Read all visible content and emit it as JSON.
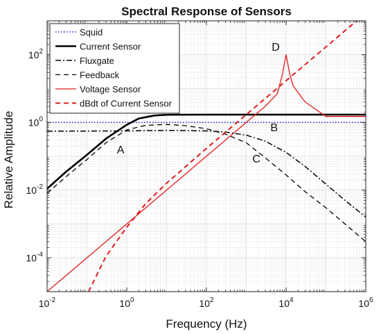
{
  "chart_data": {
    "type": "line",
    "title": "Spectral Response of Sensors",
    "xlabel": "Frequency (Hz)",
    "ylabel": "Relative Amplitude",
    "xscale": "log",
    "yscale": "log",
    "xlim": [
      0.01,
      1000000
    ],
    "ylim": [
      1e-05,
      1000
    ],
    "grid": true,
    "legend_position": "top-left",
    "x_ticks": [
      {
        "base": "10",
        "exp": "-2",
        "value": 0.01
      },
      {
        "base": "10",
        "exp": "0",
        "value": 1
      },
      {
        "base": "10",
        "exp": "2",
        "value": 100
      },
      {
        "base": "10",
        "exp": "4",
        "value": 10000
      },
      {
        "base": "10",
        "exp": "6",
        "value": 1000000
      }
    ],
    "y_ticks": [
      {
        "base": "10",
        "exp": "-4",
        "value": 0.0001
      },
      {
        "base": "10",
        "exp": "-2",
        "value": 0.01
      },
      {
        "base": "10",
        "exp": "0",
        "value": 1
      },
      {
        "base": "10",
        "exp": "2",
        "value": 100
      }
    ],
    "series": [
      {
        "name": "Squid",
        "color": "#1f1fd6",
        "dash": "dotted",
        "width": 1.6,
        "points": [
          [
            0.01,
            1
          ],
          [
            1000000,
            1
          ]
        ]
      },
      {
        "name": "Current Sensor",
        "color": "#000000",
        "dash": "solid",
        "width": 2.6,
        "points": [
          [
            0.01,
            0.011
          ],
          [
            0.03,
            0.035
          ],
          [
            0.1,
            0.11
          ],
          [
            0.3,
            0.33
          ],
          [
            1,
            0.85
          ],
          [
            2,
            1.3
          ],
          [
            5,
            1.6
          ],
          [
            10,
            1.68
          ],
          [
            100,
            1.7
          ],
          [
            1000,
            1.7
          ],
          [
            10000,
            1.7
          ],
          [
            100000,
            1.7
          ],
          [
            1000000,
            1.7
          ]
        ]
      },
      {
        "name": "Fluxgate",
        "color": "#000000",
        "dash": "dashdot",
        "width": 1.5,
        "points": [
          [
            0.01,
            0.55
          ],
          [
            1,
            0.56
          ],
          [
            10,
            0.58
          ],
          [
            100,
            0.56
          ],
          [
            300,
            0.52
          ],
          [
            1000,
            0.42
          ],
          [
            3000,
            0.28
          ],
          [
            10000,
            0.13
          ],
          [
            30000,
            0.05
          ],
          [
            100000,
            0.015
          ],
          [
            300000,
            0.005
          ],
          [
            1000000,
            0.0016
          ]
        ]
      },
      {
        "name": "Feedback",
        "color": "#000000",
        "dash": "dashed",
        "width": 1.3,
        "points": [
          [
            0.01,
            0.008
          ],
          [
            0.03,
            0.025
          ],
          [
            0.1,
            0.08
          ],
          [
            0.3,
            0.25
          ],
          [
            1,
            0.6
          ],
          [
            3,
            0.82
          ],
          [
            10,
            0.87
          ],
          [
            30,
            0.8
          ],
          [
            100,
            0.65
          ],
          [
            300,
            0.45
          ],
          [
            1000,
            0.25
          ],
          [
            3000,
            0.09
          ],
          [
            10000,
            0.028
          ],
          [
            30000,
            0.009
          ],
          [
            100000,
            0.003
          ],
          [
            300000,
            0.001
          ],
          [
            1000000,
            0.0003
          ]
        ]
      },
      {
        "name": "Voltage Sensor",
        "color": "#e11a1a",
        "dash": "solid",
        "width": 1.3,
        "points": [
          [
            0.01,
            1e-05
          ],
          [
            0.1,
            0.0001
          ],
          [
            1,
            0.001
          ],
          [
            10,
            0.01
          ],
          [
            100,
            0.1
          ],
          [
            1000,
            1
          ],
          [
            3000,
            3
          ],
          [
            6000,
            7
          ],
          [
            8000,
            25
          ],
          [
            10000,
            100
          ],
          [
            12500,
            25
          ],
          [
            15000,
            12
          ],
          [
            30000,
            4
          ],
          [
            100000,
            1.5
          ],
          [
            1000000,
            1.5
          ]
        ]
      },
      {
        "name": "dBdt of Current Sensor",
        "color": "#e11a1a",
        "dash": "dashed",
        "width": 2.0,
        "points": [
          [
            0.11,
            1e-05
          ],
          [
            0.3,
            0.00011
          ],
          [
            1,
            0.0008
          ],
          [
            3,
            0.004
          ],
          [
            10,
            0.016
          ],
          [
            100,
            0.17
          ],
          [
            1000,
            1.7
          ],
          [
            10000,
            17
          ],
          [
            100000,
            170
          ],
          [
            1000000,
            1700
          ]
        ]
      }
    ],
    "annotations": [
      {
        "label": "A",
        "x": 0.7,
        "y": 0.12
      },
      {
        "label": "B",
        "x": 5000,
        "y": 0.55
      },
      {
        "label": "C",
        "x": 1800,
        "y": 0.065
      },
      {
        "label": "D",
        "x": 5500,
        "y": 130
      }
    ]
  }
}
